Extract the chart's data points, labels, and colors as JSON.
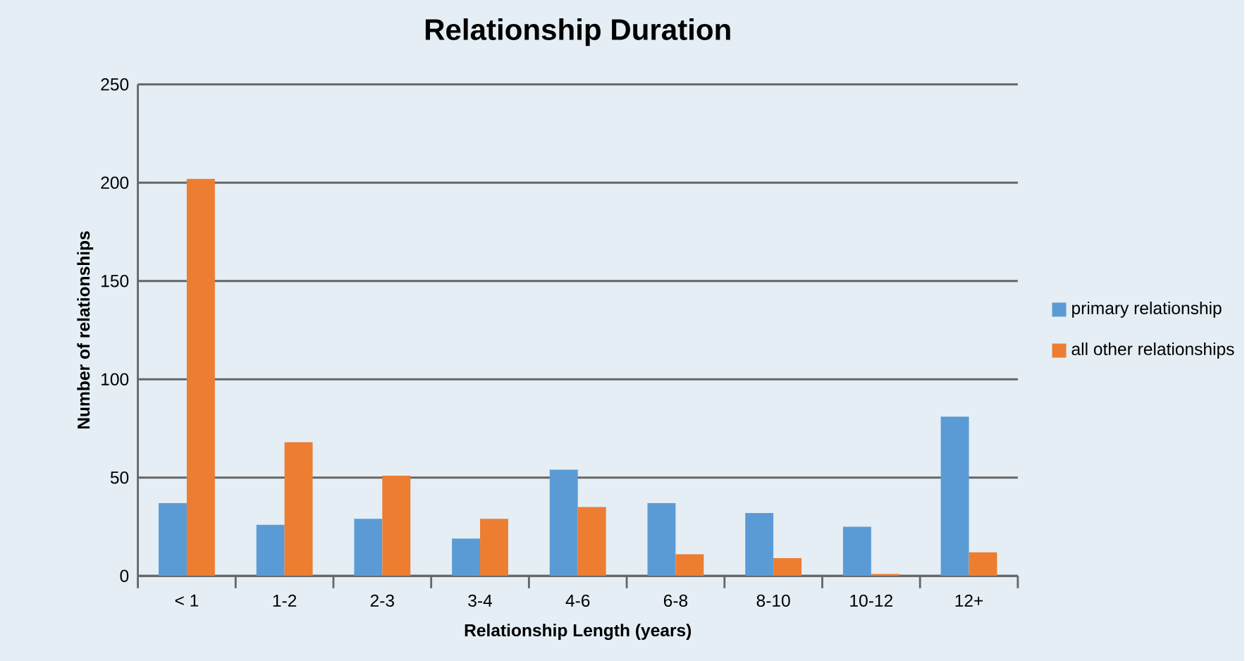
{
  "chart_data": {
    "type": "bar",
    "title": "Relationship Duration",
    "xlabel": "Relationship Length (years)",
    "ylabel": "Number of relationships",
    "categories": [
      "< 1",
      "1-2",
      "2-3",
      "3-4",
      "4-6",
      "6-8",
      "8-10",
      "10-12",
      "12+"
    ],
    "series": [
      {
        "name": "primary relationship",
        "color": "#5b9bd5",
        "values": [
          37,
          26,
          29,
          19,
          54,
          37,
          32,
          25,
          81
        ]
      },
      {
        "name": "all other relationships",
        "color": "#ed7d31",
        "values": [
          202,
          68,
          51,
          29,
          35,
          11,
          9,
          1,
          12
        ]
      }
    ],
    "ylim": [
      0,
      250
    ],
    "yticks": [
      0,
      50,
      100,
      150,
      200,
      250
    ],
    "grid": "y",
    "legend": "right"
  }
}
